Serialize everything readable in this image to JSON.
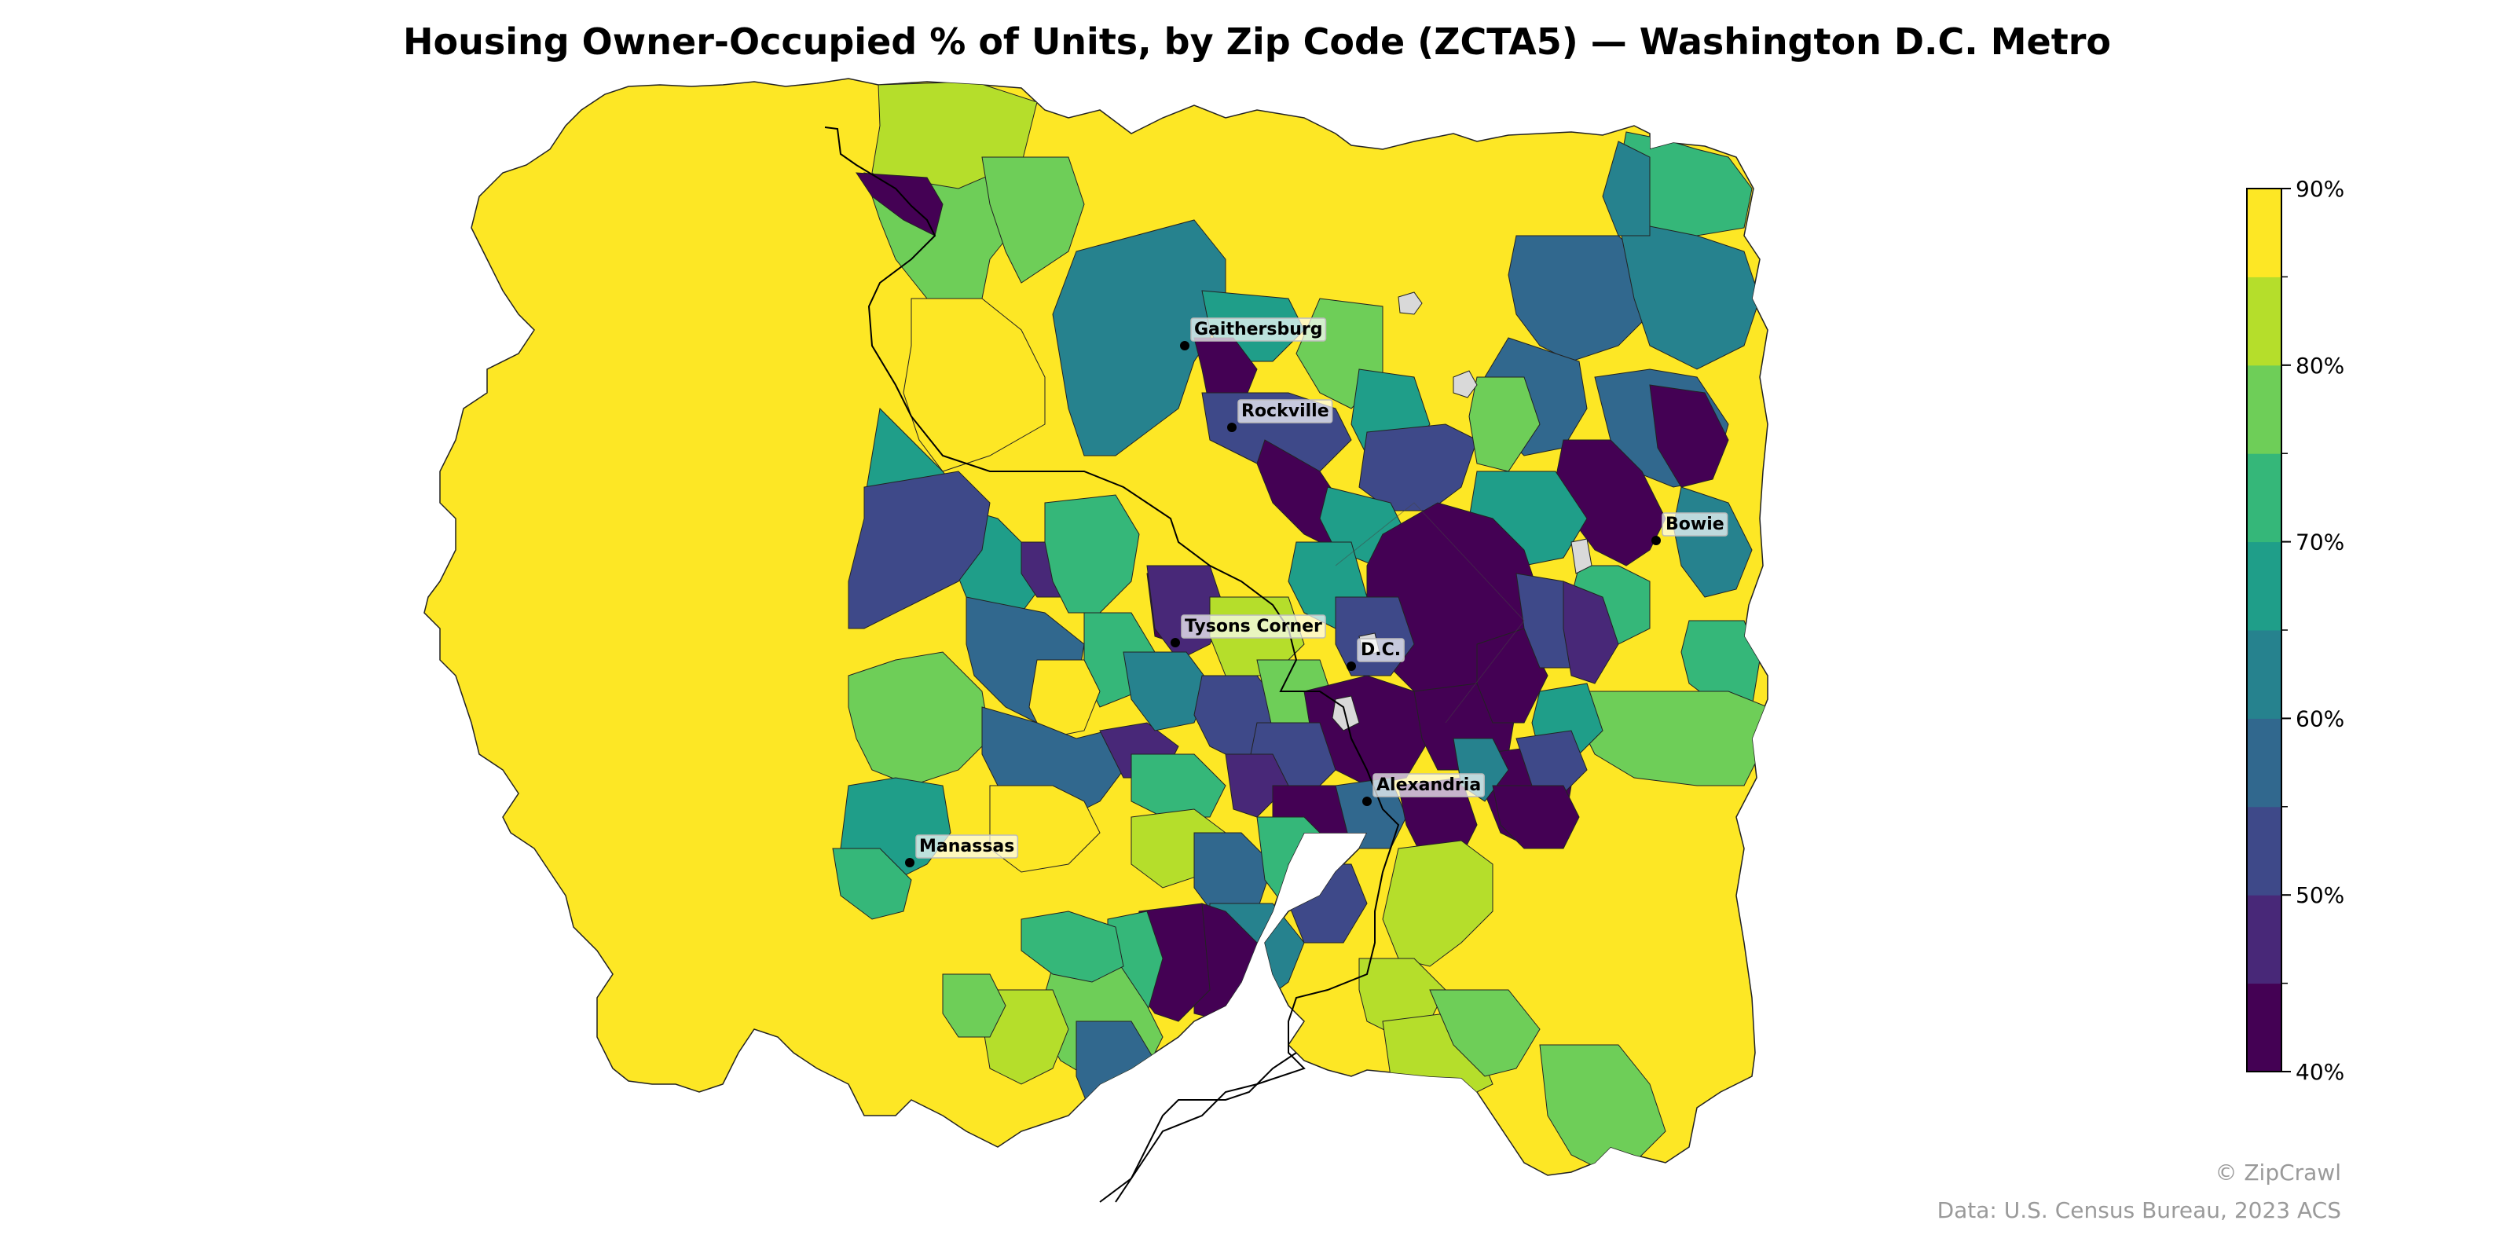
{
  "title": "Housing Owner-Occupied % of Units, by Zip Code (ZCTA5) — Washington D.C. Metro",
  "colorbar": {
    "min": 40,
    "max": 90,
    "step": 5,
    "tick_labels": [
      "40%",
      "50%",
      "60%",
      "70%",
      "80%",
      "90%"
    ],
    "tick_values": [
      40,
      50,
      60,
      70,
      80,
      90
    ],
    "colors": [
      "#440154",
      "#482878",
      "#3e4989",
      "#31688e",
      "#26828e",
      "#1f9e89",
      "#35b779",
      "#6ece58",
      "#b5de2b",
      "#fde725"
    ]
  },
  "cities": [
    {
      "name": "Gaithersburg"
    },
    {
      "name": "Rockville"
    },
    {
      "name": "Bowie"
    },
    {
      "name": "Tysons Corner"
    },
    {
      "name": "D.C."
    },
    {
      "name": "Alexandria"
    },
    {
      "name": "Manassas"
    }
  ],
  "credit": "© ZipCrawl",
  "source": "Data: U.S. Census Bureau, 2023 ACS"
}
